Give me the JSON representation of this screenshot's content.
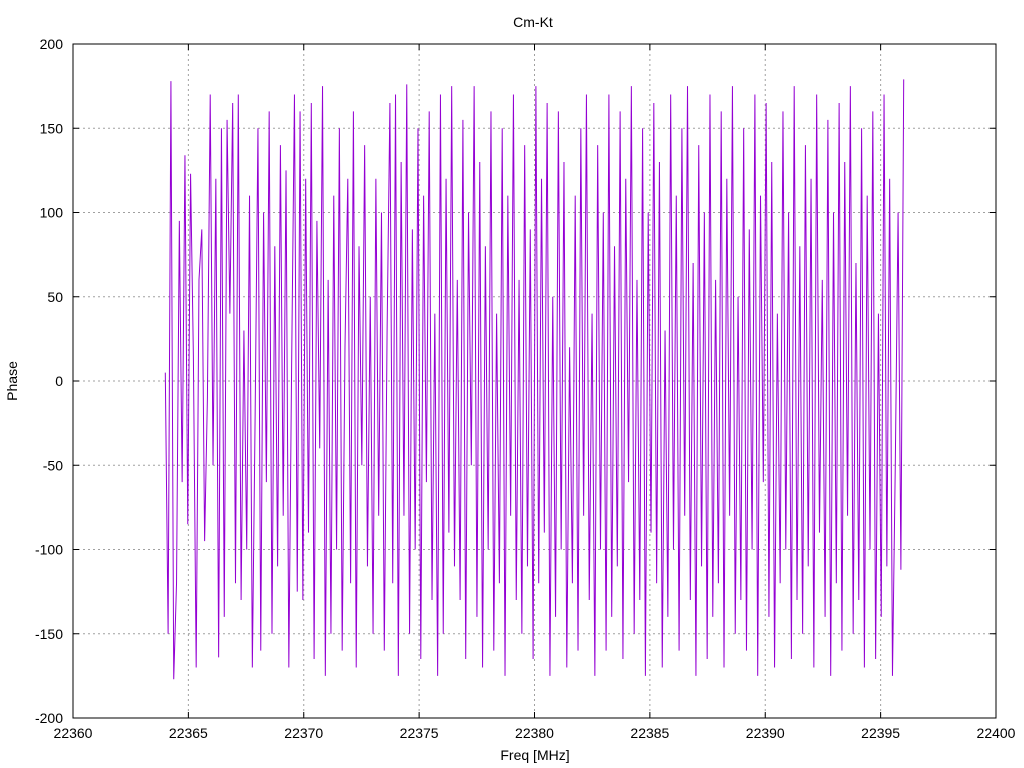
{
  "chart_data": {
    "type": "line",
    "title": "Cm-Kt",
    "xlabel": "Freq [MHz]",
    "ylabel": "Phase",
    "xlim": [
      22360,
      22400
    ],
    "ylim": [
      -200,
      200
    ],
    "x_ticks": [
      22360,
      22365,
      22370,
      22375,
      22380,
      22385,
      22390,
      22395,
      22400
    ],
    "y_ticks": [
      -200,
      -150,
      -100,
      -50,
      0,
      50,
      100,
      150,
      200
    ],
    "grid": true,
    "series_color": "#9400d3",
    "series": [
      {
        "x_start": 22364.0,
        "x_end": 22396.0,
        "values": [
          5,
          -150,
          178,
          -177,
          -120,
          95,
          -60,
          134,
          -85,
          123,
          15,
          -170,
          60,
          90,
          -95,
          -10,
          170,
          -50,
          120,
          -164,
          150,
          -140,
          155,
          40,
          165,
          -120,
          170,
          -130,
          30,
          -100,
          110,
          -170,
          -20,
          150,
          -160,
          100,
          -60,
          160,
          -150,
          80,
          -110,
          140,
          -80,
          125,
          -170,
          10,
          170,
          -125,
          160,
          -130,
          120,
          -90,
          165,
          -165,
          95,
          -40,
          175,
          -175,
          60,
          -150,
          110,
          -100,
          150,
          -160,
          20,
          120,
          -120,
          160,
          -170,
          80,
          -50,
          140,
          -110,
          50,
          -150,
          120,
          -80,
          100,
          -160,
          30,
          165,
          -120,
          170,
          -175,
          130,
          -80,
          176,
          -150,
          90,
          -100,
          150,
          -165,
          110,
          -60,
          160,
          -130,
          40,
          -175,
          170,
          -150,
          120,
          -90,
          175,
          -110,
          60,
          -130,
          155,
          -165,
          100,
          -50,
          175,
          -140,
          130,
          -170,
          80,
          -100,
          160,
          -160,
          40,
          -120,
          150,
          -175,
          110,
          -80,
          170,
          -130,
          60,
          -150,
          140,
          -110,
          90,
          -165,
          175,
          -120,
          120,
          -90,
          165,
          -175,
          50,
          -140,
          160,
          -100,
          130,
          -170,
          20,
          -120,
          110,
          -160,
          150,
          -80,
          170,
          -130,
          40,
          -175,
          140,
          -100,
          100,
          -160,
          170,
          -140,
          80,
          -110,
          160,
          -165,
          120,
          -60,
          175,
          -150,
          60,
          -130,
          150,
          -175,
          100,
          -90,
          165,
          -120,
          130,
          -170,
          30,
          -140,
          170,
          -100,
          110,
          -160,
          150,
          -80,
          175,
          -130,
          70,
          -175,
          140,
          -110,
          100,
          -165,
          170,
          -140,
          60,
          -120,
          160,
          -170,
          120,
          -80,
          175,
          -150,
          50,
          -130,
          150,
          -160,
          90,
          -100,
          170,
          -175,
          110,
          -60,
          165,
          -140,
          130,
          -170,
          40,
          -120,
          160,
          -100,
          100,
          -165,
          175,
          -130,
          80,
          -150,
          140,
          -110,
          120,
          -170,
          170,
          -90,
          60,
          -140,
          155,
          -175,
          100,
          -120,
          165,
          -160,
          130,
          -80,
          175,
          -150,
          70,
          -130,
          150,
          -170,
          110,
          -100,
          160,
          -165,
          40,
          -140,
          170,
          -110,
          120,
          -175,
          -50,
          100,
          -112,
          179
        ]
      }
    ]
  }
}
